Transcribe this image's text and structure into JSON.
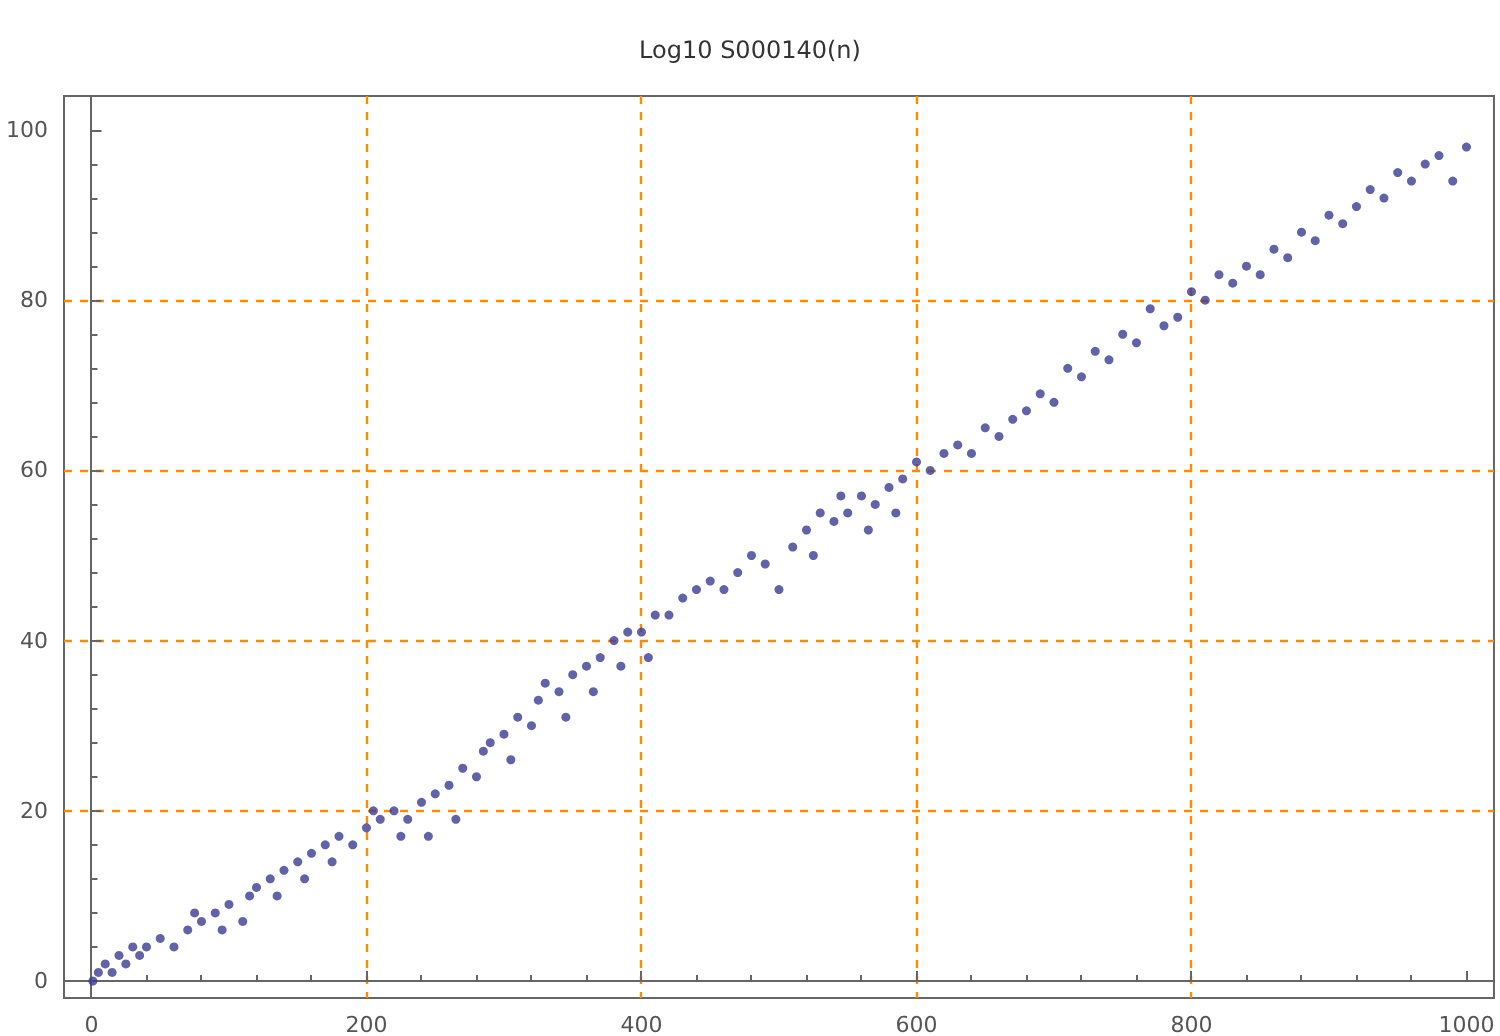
{
  "chart_data": {
    "type": "scatter",
    "title": "Log10 S000140(n)",
    "xlim": [
      -20,
      1020
    ],
    "ylim": [
      -2,
      104
    ],
    "xticks": [
      0,
      200,
      400,
      600,
      800,
      1000
    ],
    "yticks": [
      0,
      20,
      40,
      60,
      80,
      100
    ],
    "grid": true,
    "marker": "circle",
    "series": [
      {
        "color": "#3b3b93",
        "x": [
          1,
          5,
          10,
          15,
          20,
          25,
          30,
          35,
          40,
          50,
          60,
          70,
          75,
          80,
          90,
          95,
          100,
          110,
          115,
          120,
          130,
          135,
          140,
          150,
          155,
          160,
          170,
          175,
          180,
          190,
          200,
          205,
          210,
          220,
          225,
          230,
          240,
          245,
          250,
          260,
          265,
          270,
          280,
          285,
          290,
          300,
          305,
          310,
          320,
          325,
          330,
          340,
          345,
          350,
          360,
          365,
          370,
          380,
          385,
          390,
          400,
          405,
          410,
          420,
          430,
          440,
          450,
          460,
          470,
          480,
          490,
          500,
          510,
          520,
          525,
          530,
          540,
          545,
          550,
          560,
          565,
          570,
          580,
          585,
          590,
          600,
          610,
          620,
          630,
          640,
          650,
          660,
          670,
          680,
          690,
          700,
          710,
          720,
          730,
          740,
          750,
          760,
          770,
          780,
          790,
          800,
          810,
          820,
          830,
          840,
          850,
          860,
          870,
          880,
          890,
          900,
          910,
          920,
          930,
          940,
          950,
          960,
          970,
          980,
          990,
          1000
        ],
        "values": [
          0,
          1,
          2,
          1,
          3,
          2,
          4,
          3,
          4,
          5,
          4,
          6,
          8,
          7,
          8,
          6,
          9,
          7,
          10,
          11,
          12,
          10,
          13,
          14,
          12,
          15,
          16,
          14,
          17,
          16,
          18,
          20,
          19,
          20,
          17,
          19,
          21,
          17,
          22,
          23,
          19,
          25,
          24,
          27,
          28,
          29,
          26,
          31,
          30,
          33,
          35,
          34,
          31,
          36,
          37,
          34,
          38,
          40,
          37,
          41,
          41,
          38,
          43,
          43,
          45,
          46,
          47,
          46,
          48,
          50,
          49,
          46,
          51,
          53,
          50,
          55,
          54,
          57,
          55,
          57,
          53,
          56,
          58,
          55,
          59,
          61,
          60,
          62,
          63,
          62,
          65,
          64,
          66,
          67,
          69,
          68,
          72,
          71,
          74,
          73,
          76,
          75,
          79,
          77,
          78,
          81,
          80,
          83,
          82,
          84,
          83,
          86,
          85,
          88,
          87,
          90,
          89,
          91,
          93,
          92,
          95,
          94,
          96,
          97,
          94,
          98
        ]
      }
    ]
  }
}
